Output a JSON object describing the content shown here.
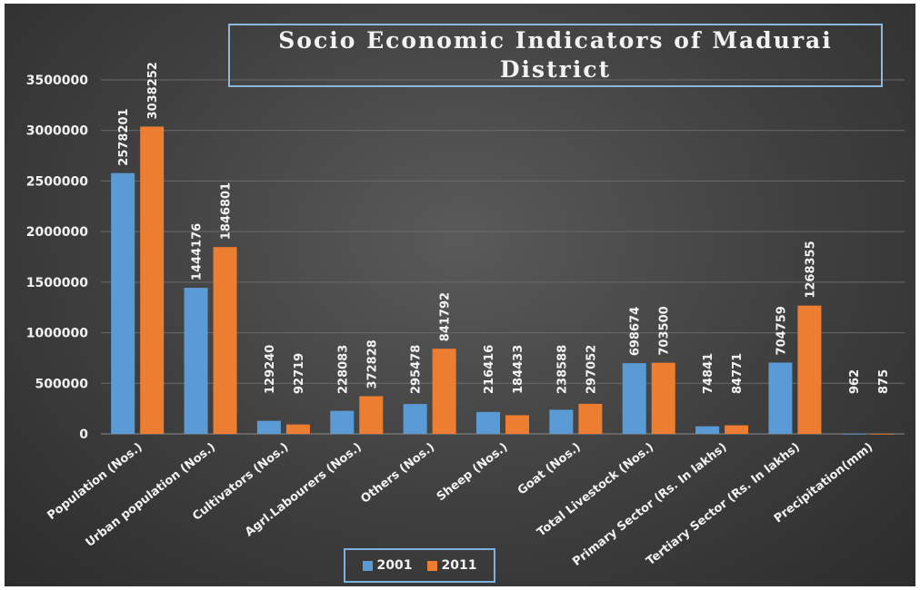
{
  "chart_data": {
    "type": "bar",
    "title": "Socio Economic Indicators of Madurai District",
    "categories": [
      "Population (Nos.)",
      "Urban population (Nos.)",
      "Cultivators (Nos.)",
      "Agrl.Labourers (Nos.)",
      "Others (Nos.)",
      "Sheep (Nos.)",
      "Goat (Nos.)",
      "Total Livestock (Nos.)",
      "Primary Sector (Rs. In lakhs)",
      "Tertiary Sector (Rs. In lakhs)",
      "Precipitation(mm)"
    ],
    "series": [
      {
        "name": "2001",
        "color": "#5b9bd5",
        "values": [
          2578201,
          1444176,
          129240,
          228083,
          295478,
          216416,
          238588,
          698674,
          74841,
          704759,
          962
        ]
      },
      {
        "name": "2011",
        "color": "#ed7d31",
        "values": [
          3038252,
          1846801,
          92719,
          372828,
          841792,
          184433,
          297052,
          703500,
          84771,
          1268355,
          875
        ]
      }
    ],
    "yticks": [
      "0",
      "500000",
      "1000000",
      "1500000",
      "2000000",
      "2500000",
      "3000000",
      "3500000"
    ],
    "ylim": [
      0,
      3500000
    ],
    "xlabel": "",
    "ylabel": "",
    "grid": true,
    "legend_position": "bottom"
  }
}
